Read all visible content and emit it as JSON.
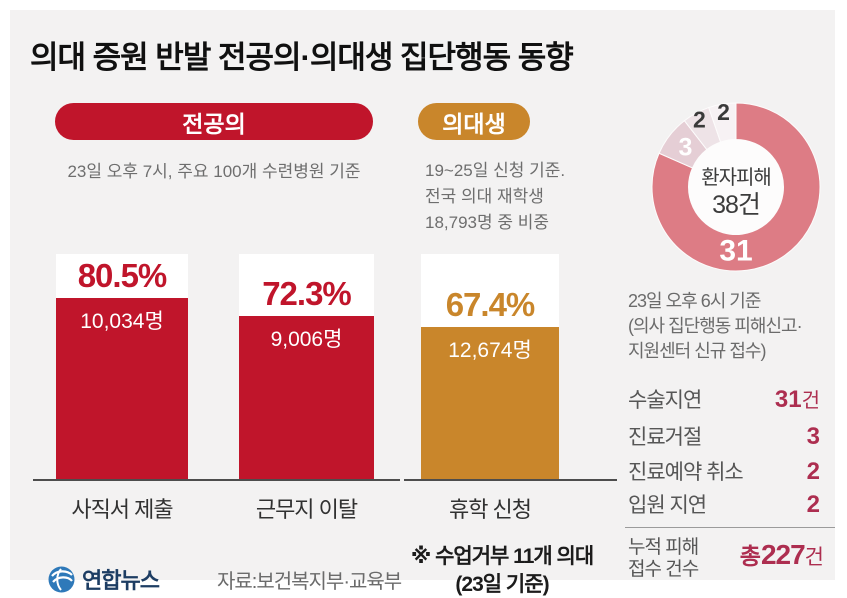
{
  "title": "의대 증원 반발 전공의·의대생 집단행동 동향",
  "groups": {
    "resident": {
      "badge": "전공의",
      "badge_color": "#c0152b",
      "subtitle": "23일 오후 7시, 주요 100개 수련병원 기준"
    },
    "student": {
      "badge": "의대생",
      "badge_color": "#c9862b",
      "subtitle_lines": [
        "19~25일 신청 기준.",
        "전국 의대 재학생",
        "18,793명 중 비중"
      ]
    }
  },
  "chart_data": [
    {
      "type": "bar",
      "categories": [
        "사직서 제출",
        "근무지 이탈",
        "휴학 신청"
      ],
      "values": [
        80.5,
        72.3,
        67.4
      ],
      "value_labels": [
        "80.5%",
        "72.3%",
        "67.4%"
      ],
      "count_labels": [
        "10,034명",
        "9,006명",
        "12,674명"
      ],
      "bar_colors": [
        "#c0152b",
        "#c0152b",
        "#c9862b"
      ],
      "ylim": [
        0,
        100
      ],
      "unit": "%",
      "footnote_line1": "※ 수업거부 11개 의대",
      "footnote_line2": "(23일 기준)"
    },
    {
      "type": "donut",
      "center_title": "환자피해",
      "center_value": "38건",
      "total": 38,
      "start_angle": 0,
      "clockwise": true,
      "hole_color": "#fdfcfc",
      "segments": [
        {
          "label": "31",
          "value": 31,
          "color": "#dd7c85",
          "label_color": "#ffffff",
          "label_size": 30,
          "label_radius": 64,
          "label_angle": 180
        },
        {
          "label": "3",
          "value": 3,
          "color": "#e5ced5",
          "label_color": "#ffffff",
          "label_size": 25,
          "label_radius": 64
        },
        {
          "label": "2",
          "value": 2,
          "color": "#eee3e7",
          "label_color": "#3a3a3a",
          "label_size": 23,
          "label_radius": 77
        },
        {
          "label": "2",
          "value": 2,
          "color": "#f7f2f4",
          "label_color": "#3a3a3a",
          "label_size": 23,
          "label_radius": 76
        }
      ]
    }
  ],
  "damage_report": {
    "heading_lines": [
      "23일 오후 6시 기준",
      "(의사 집단행동 피해신고·",
      "지원센터 신규 접수)"
    ],
    "rows": [
      {
        "label": "수술지연",
        "value": "31",
        "unit": "건"
      },
      {
        "label": "진료거절",
        "value": "3",
        "unit": ""
      },
      {
        "label": "진료예약 취소",
        "value": "2",
        "unit": ""
      },
      {
        "label": "입원 지연",
        "value": "2",
        "unit": ""
      }
    ],
    "total": {
      "label_line1": "누적 피해",
      "label_line2": "접수 건수",
      "prefix": "총",
      "value": "227",
      "unit": "건"
    },
    "accent_color": "#ad2e50"
  },
  "footer": {
    "logo_text": "연합뉴스",
    "source": "자료:보건복지부·교육부"
  }
}
